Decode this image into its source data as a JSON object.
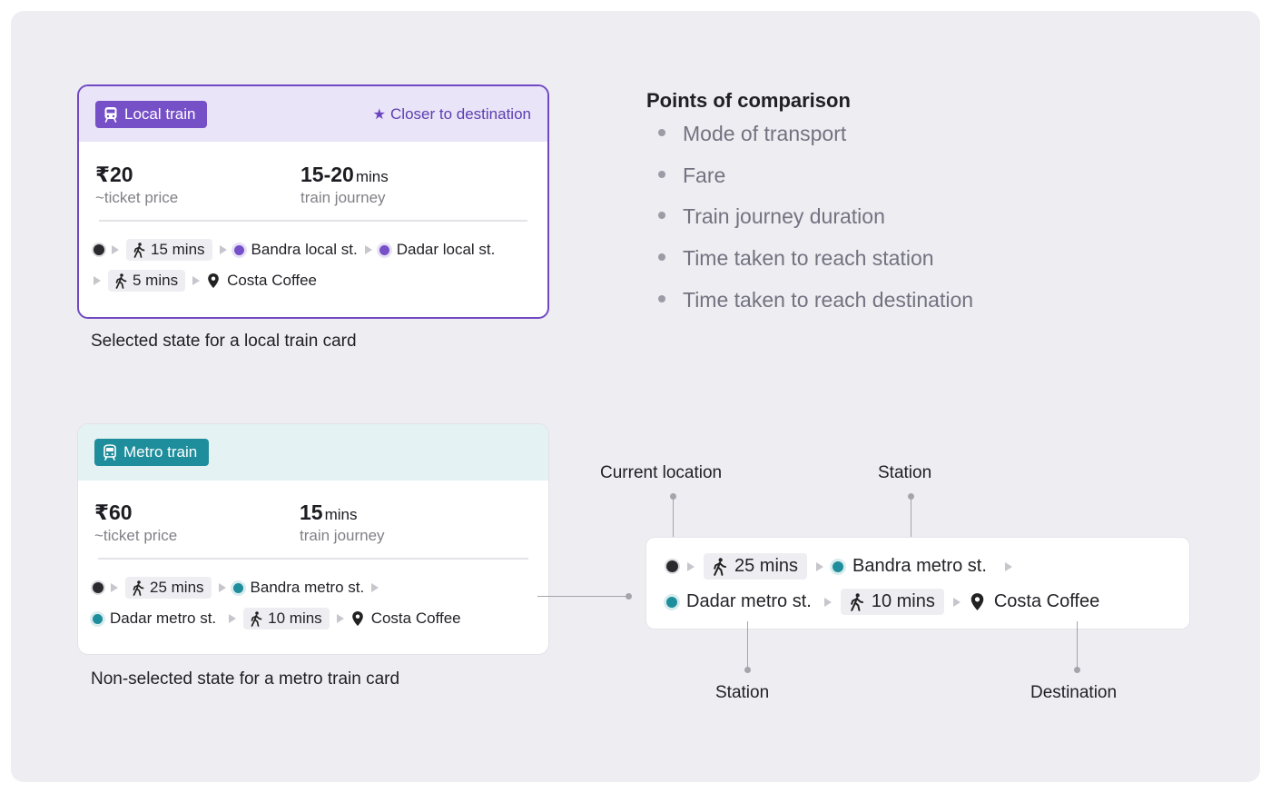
{
  "local_card": {
    "badge": "Local train",
    "tag": "Closer to destination",
    "fare": "₹20",
    "fare_label": "~ticket price",
    "journey_value": "15-20",
    "journey_unit": "mins",
    "journey_label": "train journey",
    "walk_to_station": "15 mins",
    "start_station": "Bandra local st.",
    "end_station": "Dadar local st.",
    "walk_to_destination": "5 mins",
    "destination": "Costa Coffee",
    "caption": "Selected state for a local train card"
  },
  "metro_card": {
    "badge": "Metro train",
    "fare": "₹60",
    "fare_label": "~ticket price",
    "journey_value": "15",
    "journey_unit": "mins",
    "journey_label": "train journey",
    "walk_to_station": "25 mins",
    "start_station": "Bandra metro st.",
    "end_station": "Dadar metro st.",
    "walk_to_destination": "10 mins",
    "destination": "Costa Coffee",
    "caption": "Non-selected state for a metro train card"
  },
  "comparison": {
    "title": "Points of comparison",
    "items": [
      "Mode of transport",
      "Fare",
      "Train journey duration",
      "Time taken to reach station",
      "Time taken to reach destination"
    ]
  },
  "anatomy": {
    "walk_to_station": "25 mins",
    "start_station": "Bandra metro st.",
    "end_station": "Dadar metro st.",
    "walk_to_destination": "10 mins",
    "destination": "Costa Coffee",
    "labels": {
      "current_location": "Current location",
      "station_top": "Station",
      "station_bottom": "Station",
      "destination": "Destination"
    }
  },
  "colors": {
    "local_accent": "#7650c7",
    "metro_accent": "#1f8e9c",
    "background": "#eeedf2"
  },
  "icons": {
    "local_badge": "train-icon",
    "metro_badge": "metro-train-icon",
    "tag": "star-icon",
    "walk": "walking-person-icon",
    "destination": "location-pin-icon"
  }
}
